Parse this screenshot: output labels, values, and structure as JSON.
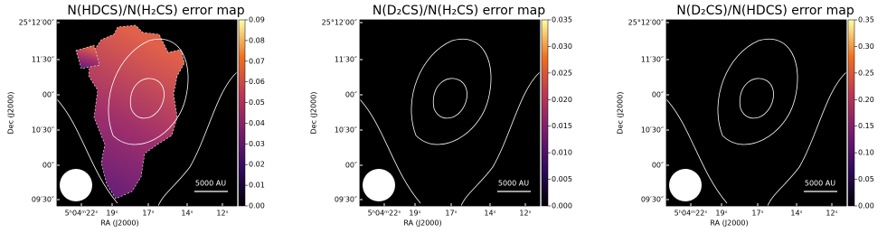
{
  "chart_data": [
    {
      "type": "heatmap",
      "title": "N(HDCS)/N(H₂CS) error map",
      "xlabel": "RA (J2000)",
      "ylabel": "Dec (J2000)",
      "xticklabels": [
        "5ʰ04ᵐ22ˢ",
        "19ˢ",
        "17ˢ",
        "14ˢ",
        "12ˢ"
      ],
      "yticklabels": [
        "25°12′00″",
        "11′30″",
        "00″",
        "10′30″",
        "00″",
        "09′30″"
      ],
      "clim": [
        0,
        0.09
      ],
      "cticks": [
        {
          "value": 0,
          "label": "0.00"
        },
        {
          "value": 0.01,
          "label": "0.01"
        },
        {
          "value": 0.02,
          "label": "0.02"
        },
        {
          "value": 0.03,
          "label": "0.03"
        },
        {
          "value": 0.04,
          "label": "0.04"
        },
        {
          "value": 0.05,
          "label": "0.05"
        },
        {
          "value": 0.06,
          "label": "0.06"
        },
        {
          "value": 0.07,
          "label": "0.07"
        },
        {
          "value": 0.08,
          "label": "0.08"
        },
        {
          "value": 0.09,
          "label": "0.09"
        }
      ],
      "scalebar": "5000 AU"
    },
    {
      "type": "heatmap",
      "title": "N(D₂CS)/N(H₂CS) error map",
      "xlabel": "RA (J2000)",
      "ylabel": "Dec (J2000)",
      "xticklabels": [
        "5ʰ04ᵐ22ˢ",
        "19ˢ",
        "17ˢ",
        "14ˢ",
        "12ˢ"
      ],
      "yticklabels": [
        "25°12′00″",
        "11′30″",
        "00″",
        "10′30″",
        "00″",
        "09′30″"
      ],
      "clim": [
        0,
        0.035
      ],
      "cticks": [
        {
          "value": 0,
          "label": "0.000"
        },
        {
          "value": 0.005,
          "label": "0.005"
        },
        {
          "value": 0.01,
          "label": "0.010"
        },
        {
          "value": 0.015,
          "label": "0.015"
        },
        {
          "value": 0.02,
          "label": "0.020"
        },
        {
          "value": 0.025,
          "label": "0.025"
        },
        {
          "value": 0.03,
          "label": "0.030"
        },
        {
          "value": 0.035,
          "label": "0.035"
        }
      ],
      "scalebar": "5000 AU"
    },
    {
      "type": "heatmap",
      "title": "N(D₂CS)/N(HDCS) error map",
      "xlabel": "RA (J2000)",
      "ylabel": "Dec (J2000)",
      "xticklabels": [
        "5ʰ04ᵐ22ˢ",
        "19ˢ",
        "17ˢ",
        "14ˢ",
        "12ˢ"
      ],
      "yticklabels": [
        "25°12′00″",
        "11′30″",
        "00″",
        "10′30″",
        "00″",
        "09′30″"
      ],
      "clim": [
        0,
        0.35
      ],
      "cticks": [
        {
          "value": 0,
          "label": "0.00"
        },
        {
          "value": 0.05,
          "label": "0.05"
        },
        {
          "value": 0.1,
          "label": "0.10"
        },
        {
          "value": 0.15,
          "label": "0.15"
        },
        {
          "value": 0.2,
          "label": "0.20"
        },
        {
          "value": 0.25,
          "label": "0.25"
        },
        {
          "value": 0.3,
          "label": "0.30"
        },
        {
          "value": 0.35,
          "label": "0.35"
        }
      ],
      "scalebar": "5000 AU"
    }
  ]
}
